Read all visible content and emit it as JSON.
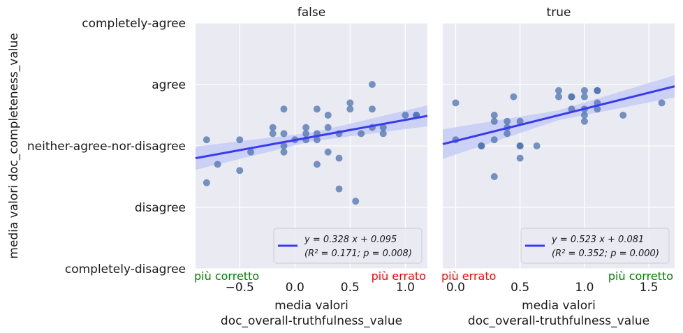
{
  "chart_data": {
    "type": "scatter",
    "ylabel": "media valori doc_completeness_value",
    "y_categories": [
      "completely-disagree",
      "disagree",
      "neither-agree-nor-disagree",
      "agree",
      "completely-agree"
    ],
    "ylim": [
      -2,
      2
    ],
    "yticks": [
      -2,
      -1,
      0,
      1,
      2
    ],
    "grid": true,
    "point_color": "#4c72b0",
    "line_color": "#3a3aee",
    "band_color": "#c5cbf6",
    "panels": [
      {
        "title": "false",
        "xlabel_line1": "media valori",
        "xlabel_line2": "doc_overall-truthfulness_value",
        "xlim": [
          -0.9,
          1.2
        ],
        "xticks": [
          -0.5,
          0.0,
          0.5,
          1.0
        ],
        "xtick_labels": [
          "−0.5",
          "0.0",
          "0.5",
          "1.0"
        ],
        "left_note": "più corretto",
        "left_note_color": "#008000",
        "right_note": "più errato",
        "right_note_color": "#ff0000",
        "fit": {
          "slope": 0.328,
          "intercept": 0.095
        },
        "band_halfwidth": [
          0.19,
          0.07,
          0.17
        ],
        "legend_line1": "y = 0.328 x + 0.095",
        "legend_line2": "(R² = 0.171; p = 0.008)",
        "points": [
          [
            -0.8,
            0.1
          ],
          [
            -0.8,
            -0.6
          ],
          [
            -0.7,
            -0.3
          ],
          [
            -0.5,
            0.1
          ],
          [
            -0.5,
            -0.4
          ],
          [
            -0.4,
            -0.1
          ],
          [
            -0.2,
            0.3
          ],
          [
            -0.2,
            0.2
          ],
          [
            -0.1,
            0.6
          ],
          [
            -0.1,
            0.2
          ],
          [
            -0.1,
            0.0
          ],
          [
            -0.1,
            -0.1
          ],
          [
            0.0,
            0.1
          ],
          [
            0.1,
            0.3
          ],
          [
            0.1,
            0.2
          ],
          [
            0.1,
            0.1
          ],
          [
            0.2,
            0.6
          ],
          [
            0.2,
            0.2
          ],
          [
            0.2,
            0.1
          ],
          [
            0.2,
            -0.3
          ],
          [
            0.3,
            0.5
          ],
          [
            0.3,
            0.3
          ],
          [
            0.3,
            -0.1
          ],
          [
            0.4,
            0.2
          ],
          [
            0.4,
            -0.2
          ],
          [
            0.4,
            -0.7
          ],
          [
            0.5,
            0.7
          ],
          [
            0.5,
            0.6
          ],
          [
            0.55,
            -0.9
          ],
          [
            0.6,
            0.2
          ],
          [
            0.7,
            1.0
          ],
          [
            0.7,
            0.6
          ],
          [
            0.7,
            0.3
          ],
          [
            0.8,
            0.3
          ],
          [
            0.8,
            0.2
          ],
          [
            1.0,
            0.5
          ],
          [
            1.1,
            0.5
          ],
          [
            1.1,
            0.5
          ]
        ]
      },
      {
        "title": "true",
        "xlabel_line1": "media valori",
        "xlabel_line2": "doc_overall-truthfulness_value",
        "xlim": [
          -0.1,
          1.7
        ],
        "xticks": [
          0.0,
          0.5,
          1.0,
          1.5
        ],
        "xtick_labels": [
          "0.0",
          "0.5",
          "1.0",
          "1.5"
        ],
        "left_note": "più errato",
        "left_note_color": "#ff0000",
        "right_note": "più corretto",
        "right_note_color": "#008000",
        "fit": {
          "slope": 0.523,
          "intercept": 0.081
        },
        "band_halfwidth": [
          0.24,
          0.08,
          0.18
        ],
        "legend_line1": "y = 0.523 x + 0.081",
        "legend_line2": "(R² = 0.352; p = 0.000)",
        "points": [
          [
            0.0,
            0.7
          ],
          [
            0.0,
            0.1
          ],
          [
            0.2,
            0.0
          ],
          [
            0.2,
            0.0
          ],
          [
            0.3,
            0.5
          ],
          [
            0.3,
            0.4
          ],
          [
            0.3,
            0.1
          ],
          [
            0.3,
            -0.5
          ],
          [
            0.4,
            0.4
          ],
          [
            0.4,
            0.3
          ],
          [
            0.4,
            0.2
          ],
          [
            0.45,
            0.8
          ],
          [
            0.5,
            0.4
          ],
          [
            0.5,
            0.0
          ],
          [
            0.5,
            0.0
          ],
          [
            0.5,
            -0.2
          ],
          [
            0.63,
            0.0
          ],
          [
            0.8,
            0.9
          ],
          [
            0.8,
            0.8
          ],
          [
            0.9,
            0.8
          ],
          [
            0.9,
            0.8
          ],
          [
            0.9,
            0.6
          ],
          [
            1.0,
            0.9
          ],
          [
            1.0,
            0.8
          ],
          [
            1.0,
            0.6
          ],
          [
            1.0,
            0.5
          ],
          [
            1.0,
            0.4
          ],
          [
            1.1,
            0.9
          ],
          [
            1.1,
            0.9
          ],
          [
            1.1,
            0.7
          ],
          [
            1.1,
            0.6
          ],
          [
            1.3,
            0.5
          ],
          [
            1.6,
            0.7
          ]
        ]
      }
    ]
  }
}
